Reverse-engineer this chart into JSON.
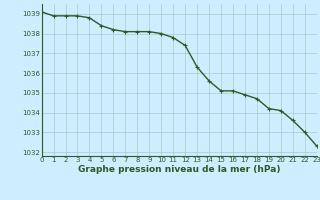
{
  "x": [
    0,
    1,
    2,
    3,
    4,
    5,
    6,
    7,
    8,
    9,
    10,
    11,
    12,
    13,
    14,
    15,
    16,
    17,
    18,
    19,
    20,
    21,
    22,
    23
  ],
  "y": [
    1039.1,
    1038.9,
    1038.9,
    1038.9,
    1038.8,
    1038.4,
    1038.2,
    1038.1,
    1038.1,
    1038.1,
    1038.0,
    1037.8,
    1037.4,
    1036.3,
    1035.6,
    1035.1,
    1035.1,
    1034.9,
    1034.7,
    1034.2,
    1034.1,
    1033.6,
    1033.0,
    1032.3
  ],
  "line_color": "#2d5a27",
  "marker": "+",
  "marker_color": "#2d5a27",
  "bg_color": "#cceeff",
  "grid_color": "#aacccc",
  "xlabel": "Graphe pression niveau de la mer (hPa)",
  "xlabel_color": "#2d5a27",
  "tick_color": "#2d5a27",
  "ylim": [
    1031.8,
    1039.5
  ],
  "xlim": [
    0,
    23
  ],
  "yticks": [
    1032,
    1033,
    1034,
    1035,
    1036,
    1037,
    1038,
    1039
  ],
  "xticks": [
    0,
    1,
    2,
    3,
    4,
    5,
    6,
    7,
    8,
    9,
    10,
    11,
    12,
    13,
    14,
    15,
    16,
    17,
    18,
    19,
    20,
    21,
    22,
    23
  ],
  "linewidth": 1.0,
  "markersize": 3.5,
  "tick_fontsize": 5,
  "xlabel_fontsize": 6.5
}
